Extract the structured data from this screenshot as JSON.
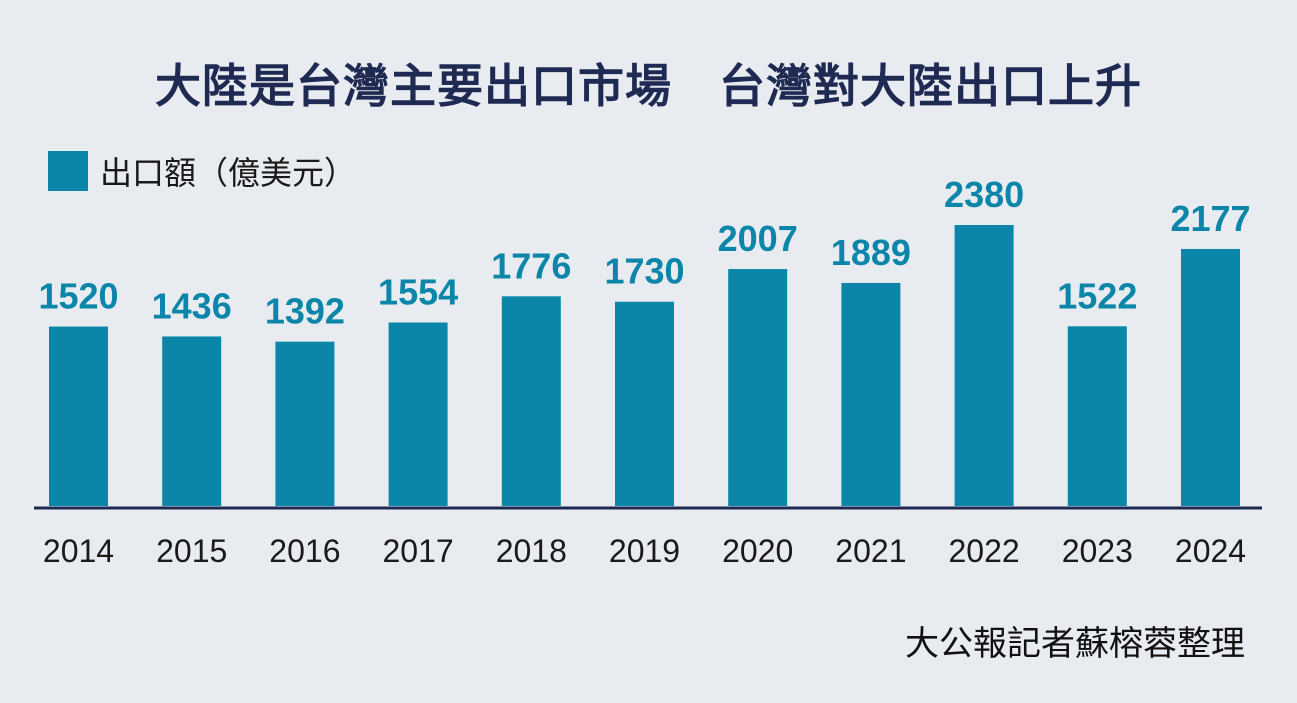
{
  "title": "大陸是台灣主要出口市場　台灣對大陸出口上升",
  "credit": "大公報記者蘇榕蓉整理",
  "colors": {
    "background": "#e8ebf0",
    "bar": "#0b86a9",
    "title": "#1e2a52",
    "axis": "#1e2a52"
  },
  "chart_data": {
    "type": "bar",
    "title": "大陸是台灣主要出口市場　台灣對大陸出口上升",
    "xlabel": "",
    "ylabel": "",
    "categories": [
      "2014",
      "2015",
      "2016",
      "2017",
      "2018",
      "2019",
      "2020",
      "2021",
      "2022",
      "2023",
      "2024"
    ],
    "series": [
      {
        "name": "出口額（億美元）",
        "values": [
          1520,
          1436,
          1392,
          1554,
          1776,
          1730,
          2007,
          1889,
          2380,
          1522,
          2177
        ]
      }
    ],
    "ylim": [
      0,
      2380
    ],
    "grid": false,
    "legend": "top-left"
  }
}
